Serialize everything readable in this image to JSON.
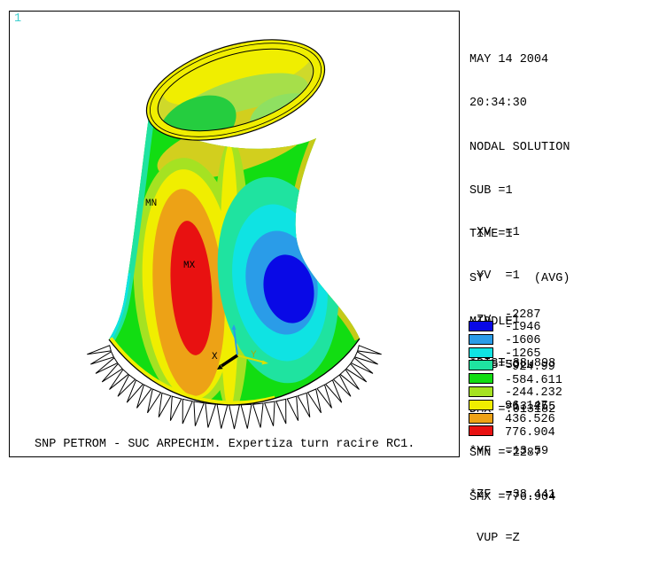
{
  "window": {
    "plot_number": "1",
    "caption": "SNP PETROM - SUC ARPECHIM. Expertiza turn racire RC1."
  },
  "solution_info": {
    "lines": [
      "MAY 14 2004",
      "20:34:30",
      "NODAL SOLUTION",
      "SUB =1",
      "TIME=1",
      "SY       (AVG)",
      "MIDDLE",
      "RSYS=SOLU",
      "DMX =.013182",
      "SMN =-2287",
      "SMX =776.904"
    ]
  },
  "view_info": {
    "lines": [
      " XV  =1",
      " YV  =1",
      " ZV  =1",
      "*DIST=38.898",
      "*XF  =13.255",
      "*YF  =13.59",
      "*ZF  =38.441",
      " VUP =Z"
    ]
  },
  "legend": {
    "values": [
      "-2287",
      "-1946",
      "-1606",
      "-1265",
      "-924.99",
      "-584.611",
      "-244.232",
      "96.147",
      "436.526",
      "776.904"
    ],
    "colors": [
      "#0909E6",
      "#2A9CE8",
      "#0FE3E3",
      "#1FE3A0",
      "#12DD12",
      "#A5E222",
      "#F0EE00",
      "#EDA216",
      "#E81111"
    ]
  },
  "plot_labels": {
    "min": "MN",
    "max": "MX",
    "axis_x": "X",
    "axis_y": "Y"
  }
}
